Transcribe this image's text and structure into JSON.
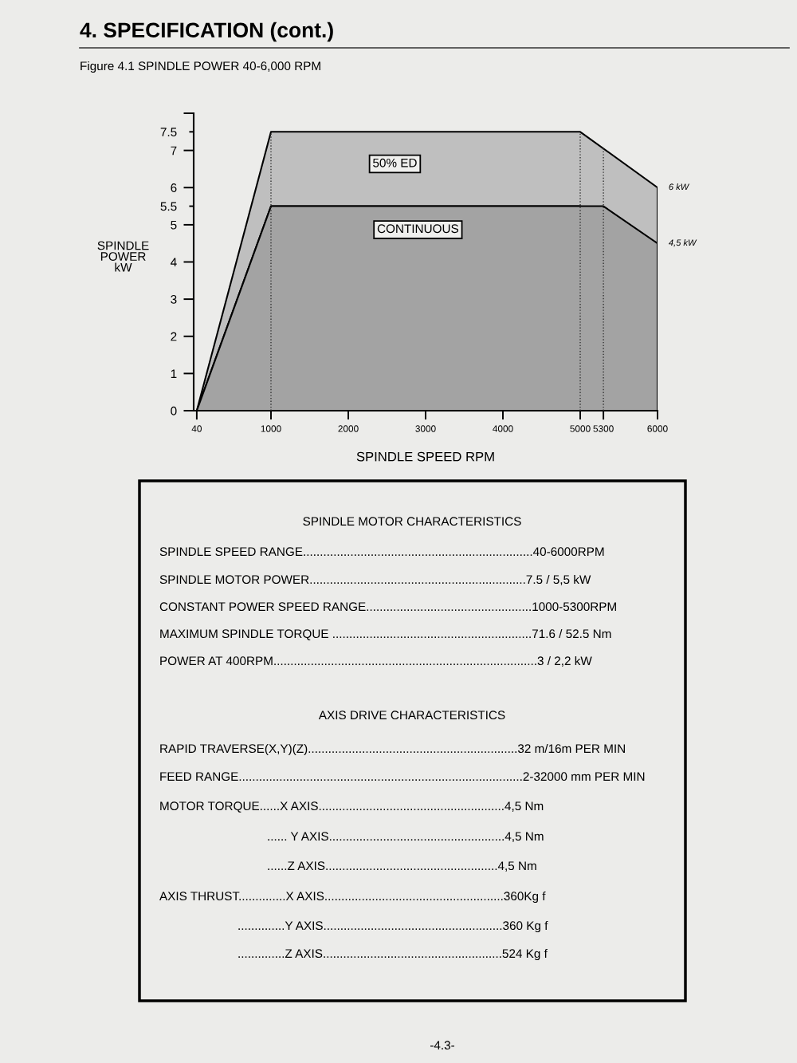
{
  "chart_data": {
    "type": "area",
    "title": "4. SPECIFICATION (cont.)",
    "subtitle": "Figure 4.1 SPINDLE POWER 40-6,000 RPM",
    "xlabel": "SPINDLE SPEED RPM",
    "ylabel": "SPINDLE\nPOWER\nkW",
    "series": [
      {
        "name": "50% ED",
        "color": "#bfbfbf",
        "x": [
          40,
          1000,
          5000,
          6000
        ],
        "values": [
          0,
          7.5,
          7.5,
          6
        ]
      },
      {
        "name": "CONTINUOUS",
        "color": "#a3a3a3",
        "x": [
          40,
          1000,
          5300,
          6000
        ],
        "values": [
          0,
          5.5,
          5.5,
          4.5
        ]
      }
    ],
    "xlim": [
      0,
      6000
    ],
    "ylim": [
      0,
      8
    ],
    "xticks": [
      40,
      1000,
      2000,
      3000,
      4000,
      5000,
      5300,
      6000
    ],
    "yticks": [
      0,
      1,
      2,
      3,
      4,
      5,
      5.5,
      6,
      7,
      7.5,
      {
        "value": 8,
        "label": null
      }
    ],
    "ref_lines": [
      {
        "axis": "x",
        "value": 1000,
        "line_style": "dotted",
        "color": "#333333"
      },
      {
        "axis": "x",
        "value": 5000,
        "line_style": "dotted",
        "color": "#333333"
      },
      {
        "axis": "x",
        "value": 5300,
        "line_style": "dotted",
        "color": "#333333"
      }
    ],
    "annotations": [
      {
        "text": "6 kW",
        "x": 6000,
        "y": 6
      },
      {
        "text": "4,5 kW",
        "x": 6000,
        "y": 4.5
      },
      "SPINDLE MOTOR CHARACTERISTICS",
      "SPINDLE SPEED RANGE....................................................................40-6000RPM",
      "SPINDLE MOTOR POWER................................................................7.5 / 5,5 kW",
      "CONSTANT POWER SPEED RANGE.................................................1000-5300RPM",
      "MAXIMUM SPINDLE TORQUE ...........................................................71.6 / 52.5 Nm",
      "POWER AT 400RPM..............................................................................3 / 2,2 kW",
      "AXIS DRIVE CHARACTERISTICS",
      "RAPID TRAVERSE(X,Y)(Z)..............................................................32 m/16m PER MIN",
      "FEED RANGE....................................................................................2-32000 mm PER MIN",
      "MOTOR TORQUE......X AXIS.......................................................4,5 Nm",
      "...... Y AXIS....................................................4,5 Nm",
      "......Z AXIS...................................................4,5 Nm",
      "AXIS THRUST..............X AXIS.....................................................360Kg f",
      "..............Y AXIS.....................................................360 Kg f",
      "..............Z AXIS.....................................................524 Kg f",
      "-4.3-"
    ]
  }
}
